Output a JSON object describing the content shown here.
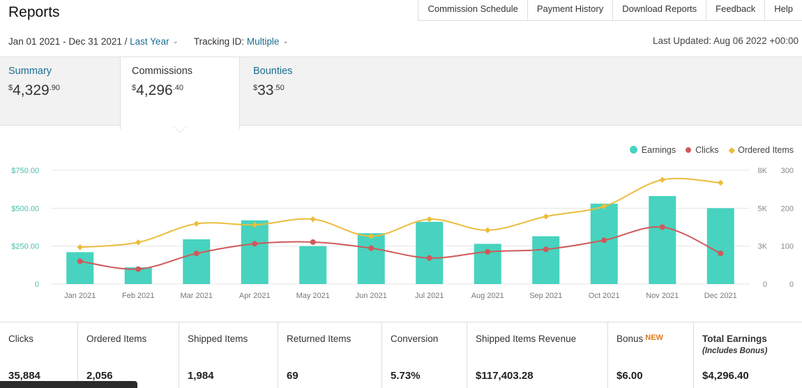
{
  "header": {
    "title": "Reports",
    "nav": [
      "Commission Schedule",
      "Payment History",
      "Download Reports",
      "Feedback",
      "Help"
    ]
  },
  "filters": {
    "date_range": "Jan 01 2021 - Dec 31 2021 /",
    "period": "Last Year",
    "tracking_label": "Tracking ID:",
    "tracking_value": "Multiple",
    "last_updated": "Last Updated: Aug 06 2022 +00:00"
  },
  "tabs": [
    {
      "label": "Summary",
      "currency": "$",
      "main": "4,329",
      "cents": ".90",
      "active": false
    },
    {
      "label": "Commissions",
      "currency": "$",
      "main": "4,296",
      "cents": ".40",
      "active": true
    },
    {
      "label": "Bounties",
      "currency": "$",
      "main": "33",
      "cents": ".50",
      "active": false
    }
  ],
  "legend": [
    {
      "name": "Earnings",
      "color": "#47d3bf"
    },
    {
      "name": "Clicks",
      "color": "#d0595a"
    },
    {
      "name": "Ordered Items",
      "color": "#ebbd3c"
    }
  ],
  "chart_data": {
    "type": "bar",
    "categories": [
      "Jan 2021",
      "Feb 2021",
      "Mar 2021",
      "Apr 2021",
      "May 2021",
      "Jun 2021",
      "Jul 2021",
      "Aug 2021",
      "Sep 2021",
      "Oct 2021",
      "Nov 2021",
      "Dec 2021"
    ],
    "left_axis": {
      "ticks": [
        "0",
        "$250.00",
        "$500.00",
        "$750.00"
      ],
      "ylim": [
        0,
        750
      ]
    },
    "clicks_axis": {
      "ticks": [
        "0",
        "3K",
        "5K",
        "8K"
      ],
      "ylim": [
        0,
        8000
      ]
    },
    "items_axis": {
      "ticks": [
        "0",
        "100",
        "200",
        "300"
      ],
      "ylim": [
        0,
        300
      ]
    },
    "series": [
      {
        "name": "Earnings",
        "type": "bar",
        "axis": "left",
        "color": "#47d3bf",
        "values": [
          210,
          110,
          295,
          420,
          250,
          335,
          410,
          265,
          315,
          530,
          580,
          500
        ]
      },
      {
        "name": "Clicks",
        "type": "line",
        "axis": "clicks",
        "color": "#d0595a",
        "values": [
          1600,
          1050,
          2150,
          2830,
          2950,
          2520,
          1830,
          2270,
          2440,
          3080,
          4000,
          2160
        ]
      },
      {
        "name": "Ordered Items",
        "type": "line",
        "axis": "items",
        "color": "#ebbd3c",
        "values": [
          97,
          110,
          159,
          156,
          171,
          126,
          171,
          142,
          178,
          205,
          275,
          267
        ]
      }
    ]
  },
  "stats": [
    {
      "label": "Clicks",
      "value": "35,884"
    },
    {
      "label": "Ordered Items",
      "value": "2,056"
    },
    {
      "label": "Shipped Items",
      "value": "1,984"
    },
    {
      "label": "Returned Items",
      "value": "69"
    },
    {
      "label": "Conversion",
      "value": "5.73%"
    },
    {
      "label": "Shipped Items Revenue",
      "value": "$117,403.28"
    },
    {
      "label": "Bonus",
      "badge": "NEW",
      "value": "$6.00"
    },
    {
      "label": "Total Earnings",
      "sub": "(Includes Bonus)",
      "value": "$4,296.40"
    }
  ]
}
